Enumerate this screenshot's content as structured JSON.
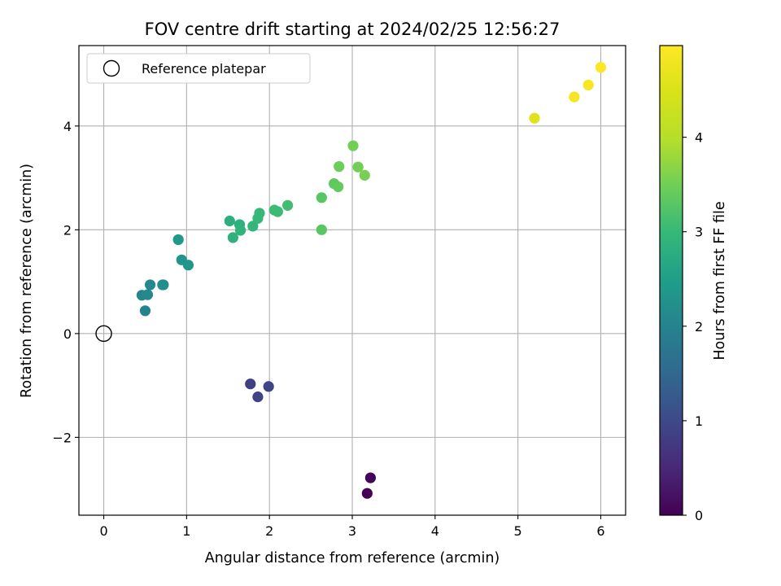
{
  "chart_data": {
    "type": "scatter",
    "title": "FOV centre drift starting at 2024/02/25 12:56:27",
    "xlabel": "Angular distance from reference (arcmin)",
    "ylabel": "Rotation from reference (arcmin)",
    "xlim": [
      -0.3,
      6.3
    ],
    "ylim": [
      -3.5,
      5.55
    ],
    "xticks": [
      0,
      1,
      2,
      3,
      4,
      5,
      6
    ],
    "yticks": [
      -2,
      0,
      2,
      4
    ],
    "ytick_labels": [
      "−2",
      "0",
      "2",
      "4"
    ],
    "grid": true,
    "legend": {
      "location": "top-left",
      "entries": [
        "Reference platepar"
      ]
    },
    "reference": {
      "x": 0,
      "y": 0
    },
    "colorbar": {
      "label": "Hours from first FF file",
      "range": [
        0,
        4.97
      ],
      "ticks": [
        0,
        1,
        2,
        3,
        4
      ],
      "colormap": "viridis"
    },
    "points": [
      {
        "x": 3.18,
        "y": -3.08,
        "hours": 0.0
      },
      {
        "x": 3.22,
        "y": -2.78,
        "hours": 0.05
      },
      {
        "x": 1.77,
        "y": -0.97,
        "hours": 0.85
      },
      {
        "x": 1.86,
        "y": -1.22,
        "hours": 0.9
      },
      {
        "x": 1.99,
        "y": -1.02,
        "hours": 0.95
      },
      {
        "x": 0.5,
        "y": 0.44,
        "hours": 2.0
      },
      {
        "x": 0.46,
        "y": 0.74,
        "hours": 2.05
      },
      {
        "x": 0.53,
        "y": 0.75,
        "hours": 2.1
      },
      {
        "x": 0.56,
        "y": 0.94,
        "hours": 2.1
      },
      {
        "x": 0.71,
        "y": 0.94,
        "hours": 2.15
      },
      {
        "x": 0.72,
        "y": 0.94,
        "hours": 2.2
      },
      {
        "x": 0.94,
        "y": 1.42,
        "hours": 2.3
      },
      {
        "x": 1.02,
        "y": 1.32,
        "hours": 2.35
      },
      {
        "x": 0.9,
        "y": 1.81,
        "hours": 2.4
      },
      {
        "x": 1.52,
        "y": 2.17,
        "hours": 2.8
      },
      {
        "x": 1.56,
        "y": 1.85,
        "hours": 2.85
      },
      {
        "x": 1.64,
        "y": 2.1,
        "hours": 2.85
      },
      {
        "x": 1.65,
        "y": 1.99,
        "hours": 2.9
      },
      {
        "x": 1.8,
        "y": 2.07,
        "hours": 2.95
      },
      {
        "x": 1.86,
        "y": 2.22,
        "hours": 3.0
      },
      {
        "x": 1.88,
        "y": 2.32,
        "hours": 3.0
      },
      {
        "x": 2.06,
        "y": 2.38,
        "hours": 3.05
      },
      {
        "x": 2.1,
        "y": 2.35,
        "hours": 3.05
      },
      {
        "x": 2.22,
        "y": 2.47,
        "hours": 3.1
      },
      {
        "x": 2.63,
        "y": 2.0,
        "hours": 3.3
      },
      {
        "x": 2.63,
        "y": 2.62,
        "hours": 3.3
      },
      {
        "x": 2.78,
        "y": 2.89,
        "hours": 3.35
      },
      {
        "x": 2.83,
        "y": 2.83,
        "hours": 3.4
      },
      {
        "x": 2.84,
        "y": 3.22,
        "hours": 3.45
      },
      {
        "x": 3.01,
        "y": 3.62,
        "hours": 3.5
      },
      {
        "x": 3.07,
        "y": 3.21,
        "hours": 3.5
      },
      {
        "x": 3.15,
        "y": 3.05,
        "hours": 3.55
      },
      {
        "x": 5.2,
        "y": 4.15,
        "hours": 4.55
      },
      {
        "x": 5.68,
        "y": 4.56,
        "hours": 4.85
      },
      {
        "x": 5.85,
        "y": 4.79,
        "hours": 4.9
      },
      {
        "x": 6.0,
        "y": 5.13,
        "hours": 4.95
      }
    ]
  }
}
